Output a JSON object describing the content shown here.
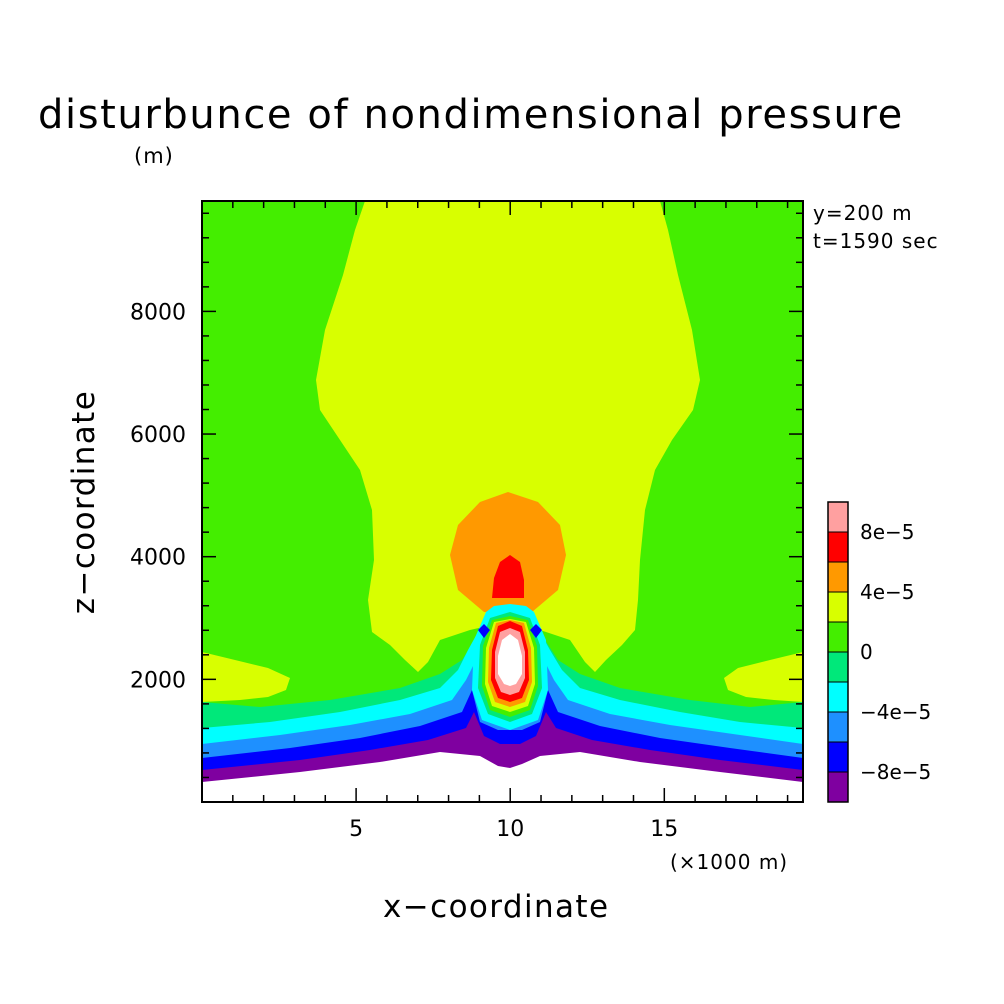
{
  "chart_data": {
    "type": "heatmap",
    "subtype": "filled-contour",
    "title": "disturbunce of nondimensional pressure",
    "units": "(m)",
    "annotations": [
      "y=200 m",
      "t=1590 sec"
    ],
    "xlabel": "x−coordinate",
    "ylabel": "z−coordinate",
    "x_scale_label": "(×1000 m)",
    "xlim": [
      0,
      19.5
    ],
    "ylim": [
      0,
      9800
    ],
    "x_ticks": [
      5,
      10,
      15
    ],
    "x_tick_labels": [
      "5",
      "10",
      "15"
    ],
    "y_ticks": [
      2000,
      4000,
      6000,
      8000
    ],
    "y_tick_labels": [
      "2000",
      "4000",
      "6000",
      "8000"
    ],
    "colorbar": {
      "levels": [
        -0.0001,
        -8e-05,
        -6e-05,
        -4e-05,
        -2e-05,
        0,
        2e-05,
        4e-05,
        6e-05,
        8e-05,
        0.0001
      ],
      "colors": [
        "#7f00a0",
        "#0000ff",
        "#1e90ff",
        "#00ffff",
        "#00e87a",
        "#44ee00",
        "#d8ff00",
        "#ff9900",
        "#ff0000",
        "#ffa0a0"
      ],
      "tick_labels": [
        "8e−5",
        "4e−5",
        "0",
        "−4e−5",
        "−8e−5"
      ]
    },
    "features": [
      {
        "name": "positive anomaly core",
        "x": 10.1,
        "z": 2500,
        "value": "> 1e-4"
      },
      {
        "name": "positive lobe aloft",
        "x": 10.1,
        "z": 4300,
        "value": "4e-5 to 1e-4"
      },
      {
        "name": "negative layer near terrain",
        "z_range": [
          400,
          1700
        ],
        "value": "-1e-4 to 0"
      },
      {
        "name": "terrain peak",
        "x": 10,
        "z": 800
      }
    ]
  },
  "colors": {
    "background": "#ffffff",
    "frame": "#000000"
  }
}
